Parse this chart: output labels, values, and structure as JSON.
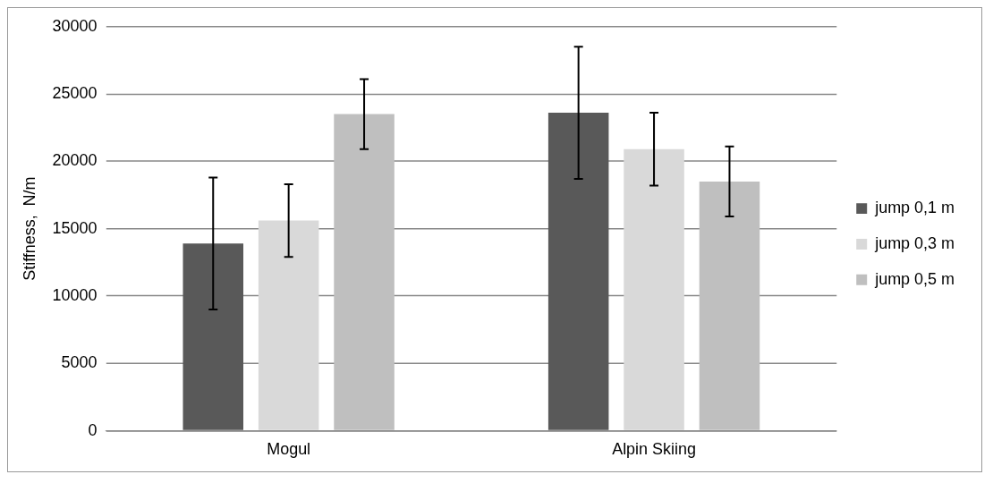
{
  "chart_data": {
    "type": "bar",
    "categories": [
      "Mogul",
      "Alpin Skiing"
    ],
    "ylabel": "Stiffness,  N/m",
    "ylim": [
      0,
      30000
    ],
    "yticks": [
      0,
      5000,
      10000,
      15000,
      20000,
      25000,
      30000
    ],
    "grid": "y",
    "legend": "right",
    "series": [
      {
        "name": "jump 0,1 m",
        "color": "#595959",
        "values": [
          13900,
          23600
        ],
        "errors": [
          4900,
          4900
        ]
      },
      {
        "name": "jump 0,3 m",
        "color": "#d9d9d9",
        "values": [
          15600,
          20900
        ],
        "errors": [
          2700,
          2700
        ]
      },
      {
        "name": "jump 0,5 m",
        "color": "#bfbfbf",
        "values": [
          23500,
          18500
        ],
        "errors": [
          2600,
          2600
        ]
      }
    ]
  }
}
